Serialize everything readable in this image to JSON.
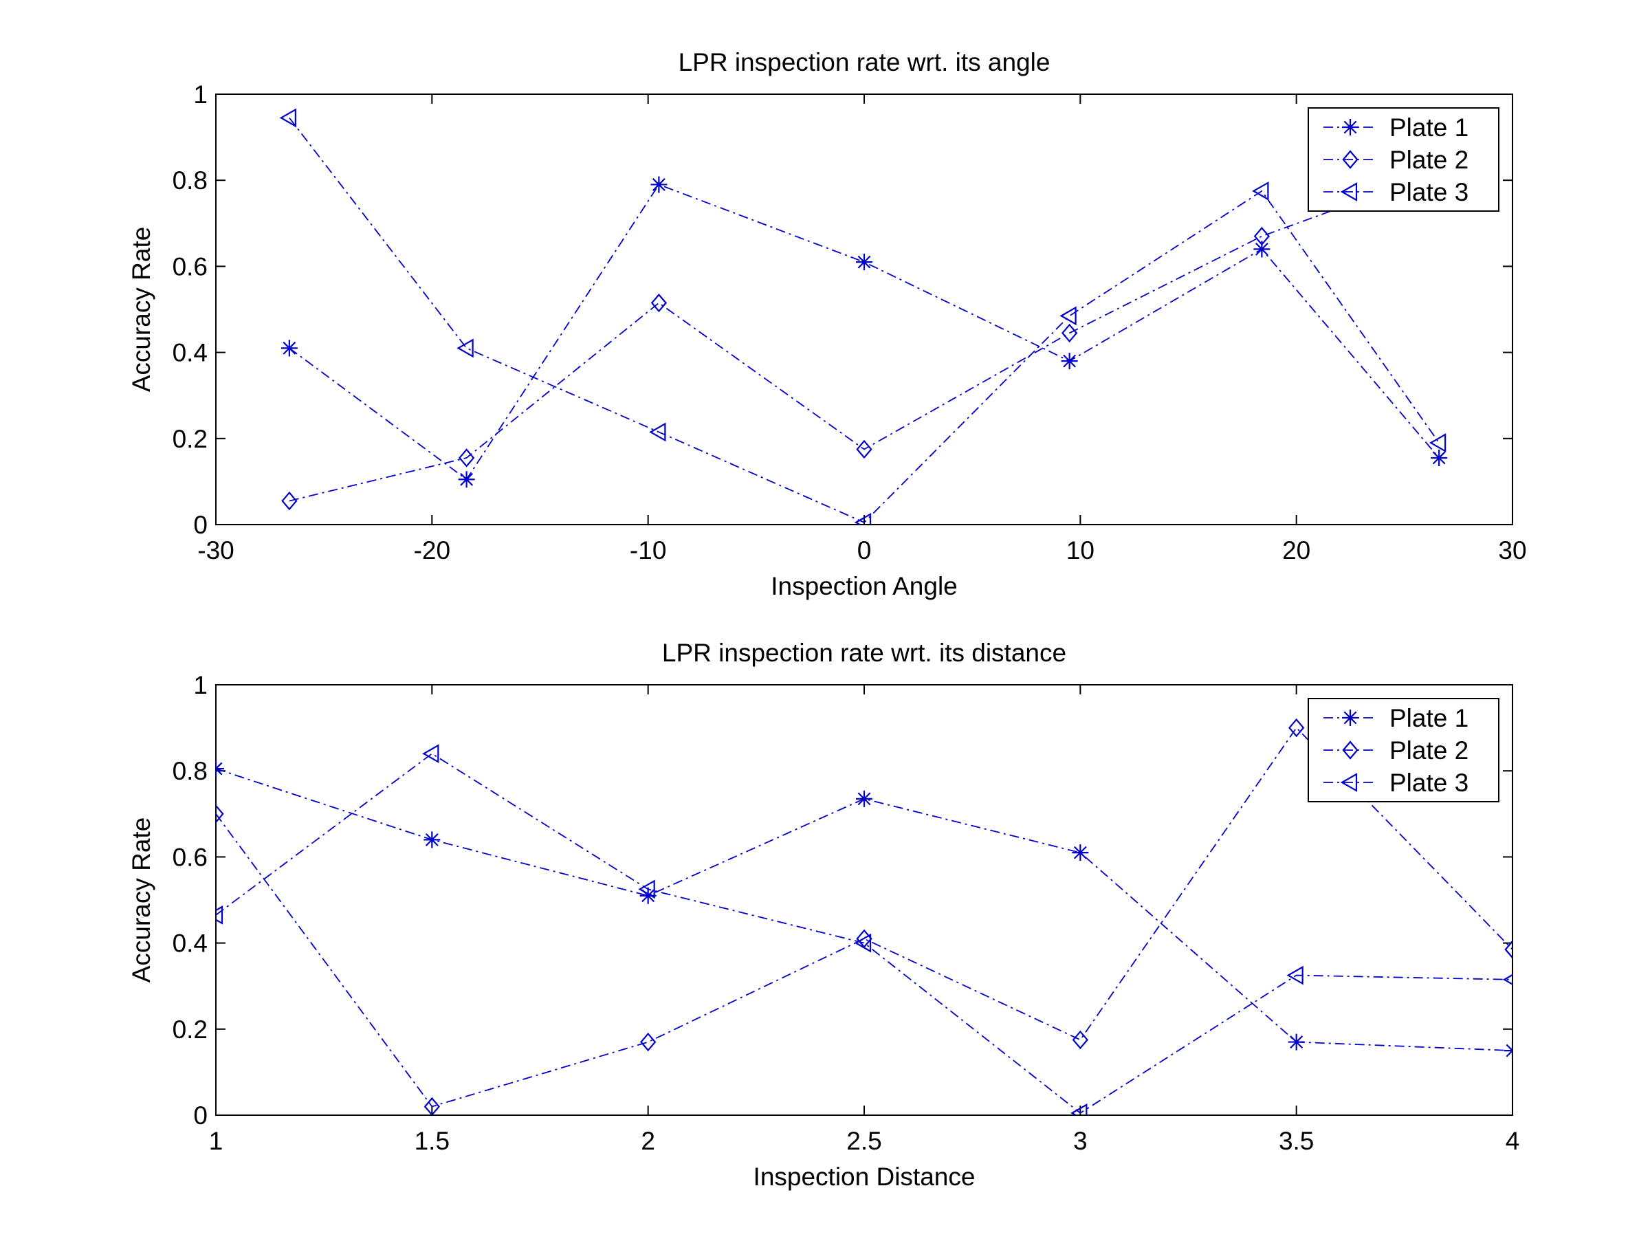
{
  "figure": {
    "line_color": "#0000CC",
    "axes_color": "#000000",
    "background": "#FFFFFF"
  },
  "chart_data": [
    {
      "type": "line",
      "title": "LPR inspection rate wrt. its angle",
      "xlabel": "Inspection Angle",
      "ylabel": "Accuracy Rate",
      "xlim": [
        -30,
        30
      ],
      "ylim": [
        0,
        1
      ],
      "xticks": [
        -30,
        -20,
        -10,
        0,
        10,
        20,
        30
      ],
      "xtick_labels": [
        "-30",
        "-20",
        "-10",
        "0",
        "10",
        "20",
        "30"
      ],
      "yticks": [
        0,
        0.2,
        0.4,
        0.6,
        0.8,
        1
      ],
      "ytick_labels": [
        "0",
        "0.2",
        "0.4",
        "0.6",
        "0.8",
        "1"
      ],
      "grid": false,
      "legend": "top-right",
      "line_style": "dash-dot",
      "series": [
        {
          "name": "Plate 1",
          "marker": "asterisk",
          "x": [
            -26.6,
            -18.4,
            -9.5,
            0,
            9.5,
            18.4,
            26.6
          ],
          "y": [
            0.41,
            0.105,
            0.79,
            0.61,
            0.38,
            0.64,
            0.155
          ]
        },
        {
          "name": "Plate 2",
          "marker": "diamond",
          "x": [
            -26.6,
            -18.4,
            -9.5,
            0,
            9.5,
            18.4,
            26.6
          ],
          "y": [
            0.055,
            0.155,
            0.515,
            0.175,
            0.445,
            0.67,
            0.82
          ]
        },
        {
          "name": "Plate 3",
          "marker": "triangle-left",
          "x": [
            -26.6,
            -18.4,
            -9.5,
            0,
            9.5,
            18.4,
            26.6
          ],
          "y": [
            0.945,
            0.41,
            0.215,
            0.005,
            0.485,
            0.775,
            0.19
          ]
        }
      ]
    },
    {
      "type": "line",
      "title": "LPR inspection rate wrt. its distance",
      "xlabel": "Inspection Distance",
      "ylabel": "Accuracy Rate",
      "xlim": [
        1,
        4
      ],
      "ylim": [
        0,
        1
      ],
      "xticks": [
        1,
        1.5,
        2,
        2.5,
        3,
        3.5,
        4
      ],
      "xtick_labels": [
        "1",
        "1.5",
        "2",
        "2.5",
        "3",
        "3.5",
        "4"
      ],
      "yticks": [
        0,
        0.2,
        0.4,
        0.6,
        0.8,
        1
      ],
      "ytick_labels": [
        "0",
        "0.2",
        "0.4",
        "0.6",
        "0.8",
        "1"
      ],
      "grid": false,
      "legend": "top-right",
      "line_style": "dash-dot",
      "series": [
        {
          "name": "Plate 1",
          "marker": "asterisk",
          "x": [
            1,
            1.5,
            2,
            2.5,
            3,
            3.5,
            4
          ],
          "y": [
            0.805,
            0.64,
            0.51,
            0.735,
            0.61,
            0.17,
            0.15
          ]
        },
        {
          "name": "Plate 2",
          "marker": "diamond",
          "x": [
            1,
            1.5,
            2,
            2.5,
            3,
            3.5,
            4
          ],
          "y": [
            0.7,
            0.02,
            0.17,
            0.41,
            0.175,
            0.9,
            0.385
          ]
        },
        {
          "name": "Plate 3",
          "marker": "triangle-left",
          "x": [
            1,
            1.5,
            2,
            2.5,
            3,
            3.5,
            4
          ],
          "y": [
            0.465,
            0.84,
            0.525,
            0.4,
            0.005,
            0.325,
            0.315
          ]
        }
      ]
    }
  ]
}
